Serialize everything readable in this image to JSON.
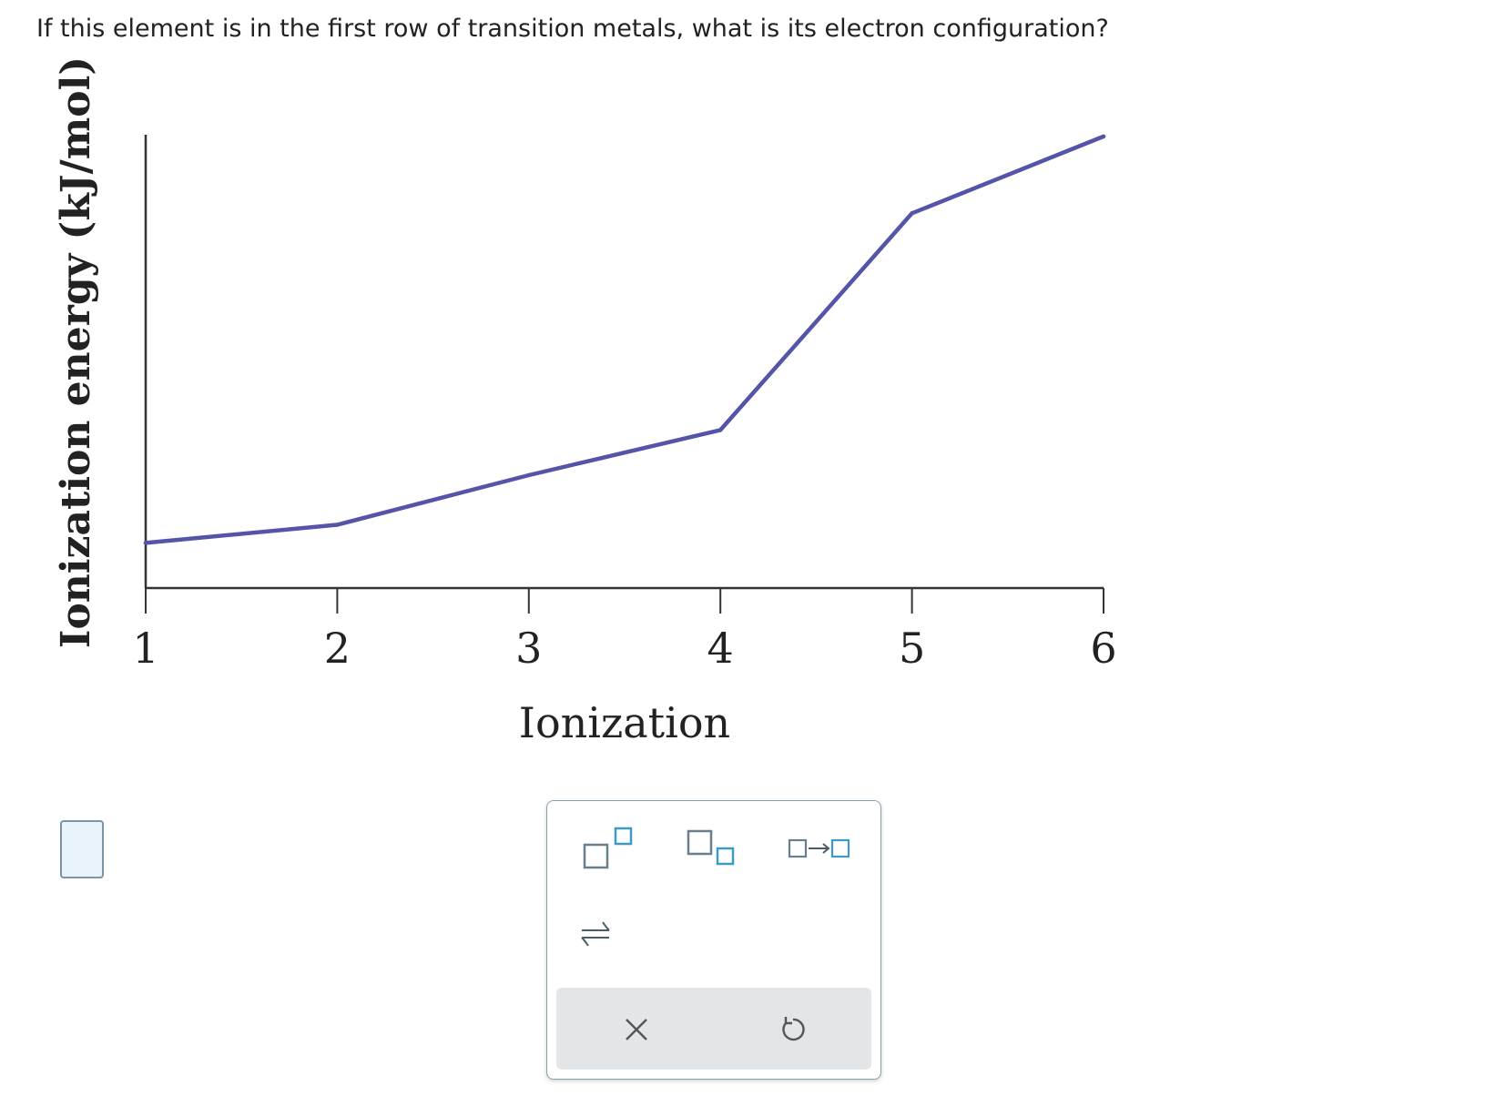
{
  "question": {
    "text": "If this element is in the first row of transition metals, what is its electron configuration?"
  },
  "chart_data": {
    "type": "line",
    "title": "",
    "xlabel": "Ionization",
    "ylabel": "Ionization energy (kJ/mol)",
    "x": [
      1,
      2,
      3,
      4,
      5,
      6
    ],
    "series": [
      {
        "values": [
          0.1,
          0.14,
          0.25,
          0.35,
          0.83,
          1.0
        ]
      }
    ],
    "xlim": [
      1,
      6
    ],
    "ylim": [
      0,
      1.02
    ],
    "y_ticks_shown": false,
    "grid": false,
    "colors": {
      "line": "#5454a8",
      "axis": "#333333"
    }
  },
  "answer": {
    "value": ""
  },
  "palette": {
    "tools": [
      {
        "name": "superscript",
        "icon": "superscript-icon"
      },
      {
        "name": "subscript",
        "icon": "subscript-icon"
      },
      {
        "name": "reaction-arrow",
        "icon": "arrow-icon"
      },
      {
        "name": "equilibrium-arrow",
        "icon": "equilibrium-arrows-icon"
      }
    ],
    "actions": [
      {
        "name": "clear",
        "icon": "close-icon"
      },
      {
        "name": "undo",
        "icon": "undo-icon"
      }
    ],
    "accent_color": "#3d9ac2"
  }
}
